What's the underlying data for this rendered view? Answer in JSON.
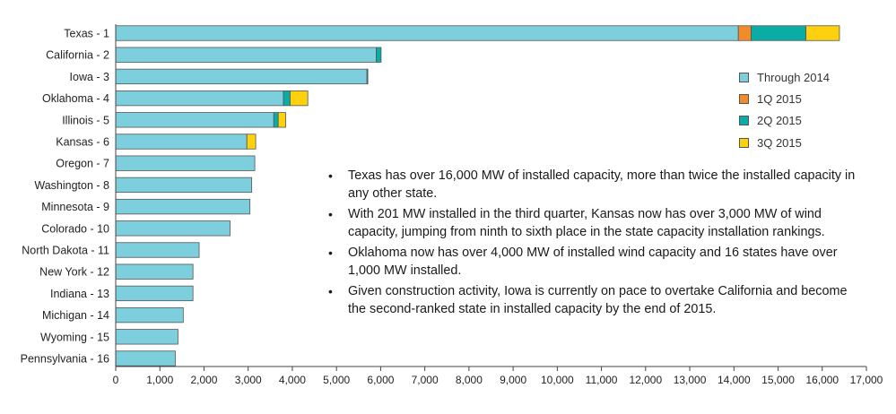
{
  "chart_data": {
    "type": "bar",
    "orientation": "horizontal",
    "stacked": true,
    "categories": [
      "Texas - 1",
      "California - 2",
      "Iowa - 3",
      "Oklahoma - 4",
      "Illinois - 5",
      "Kansas - 6",
      "Oregon - 7",
      "Washington - 8",
      "Minnesota - 9",
      "Colorado - 10",
      "North Dakota - 11",
      "New York - 12",
      "Indiana - 13",
      "Michigan - 14",
      "Wyoming - 15",
      "Pennsylvania - 16"
    ],
    "series": [
      {
        "name": "Through 2014",
        "color": "#7ecfdd",
        "values": [
          14100,
          5900,
          5690,
          3800,
          3580,
          2970,
          3150,
          3080,
          3040,
          2590,
          1890,
          1750,
          1750,
          1530,
          1410,
          1350
        ]
      },
      {
        "name": "1Q 2015",
        "color": "#f28c28",
        "values": [
          290,
          0,
          0,
          0,
          0,
          0,
          0,
          0,
          0,
          0,
          0,
          0,
          0,
          0,
          0,
          0
        ]
      },
      {
        "name": "2Q 2015",
        "color": "#0aada6",
        "values": [
          1240,
          110,
          20,
          150,
          100,
          0,
          0,
          0,
          0,
          0,
          0,
          0,
          0,
          0,
          0,
          0
        ]
      },
      {
        "name": "3Q 2015",
        "color": "#fdd10e",
        "values": [
          760,
          0,
          0,
          400,
          170,
          200,
          0,
          0,
          0,
          0,
          0,
          0,
          0,
          0,
          0,
          0
        ]
      }
    ],
    "xlim": [
      0,
      17000
    ],
    "xticks": [
      "0",
      "1,000",
      "2,000",
      "3,000",
      "4,000",
      "5,000",
      "6,000",
      "7,000",
      "8,000",
      "9,000",
      "10,000",
      "11,000",
      "12,000",
      "13,000",
      "14,000",
      "15,000",
      "16,000",
      "17,000"
    ],
    "title": "",
    "xlabel": "",
    "ylabel": "",
    "grid": false,
    "legend_position": "right"
  },
  "notes": [
    "Texas has over 16,000 MW of installed capacity, more than twice the installed capacity in any other state.",
    "With 201 MW installed in the third quarter, Kansas now has over 3,000 MW of wind capacity, jumping from ninth to sixth place in the state capacity installation rankings.",
    "Oklahoma now has over 4,000 MW of installed wind capacity and 16 states have over 1,000 MW installed.",
    "Given construction activity, Iowa is currently on pace to overtake California and become the second-ranked state in installed capacity by the end of 2015."
  ],
  "bullet_glyph": "•"
}
